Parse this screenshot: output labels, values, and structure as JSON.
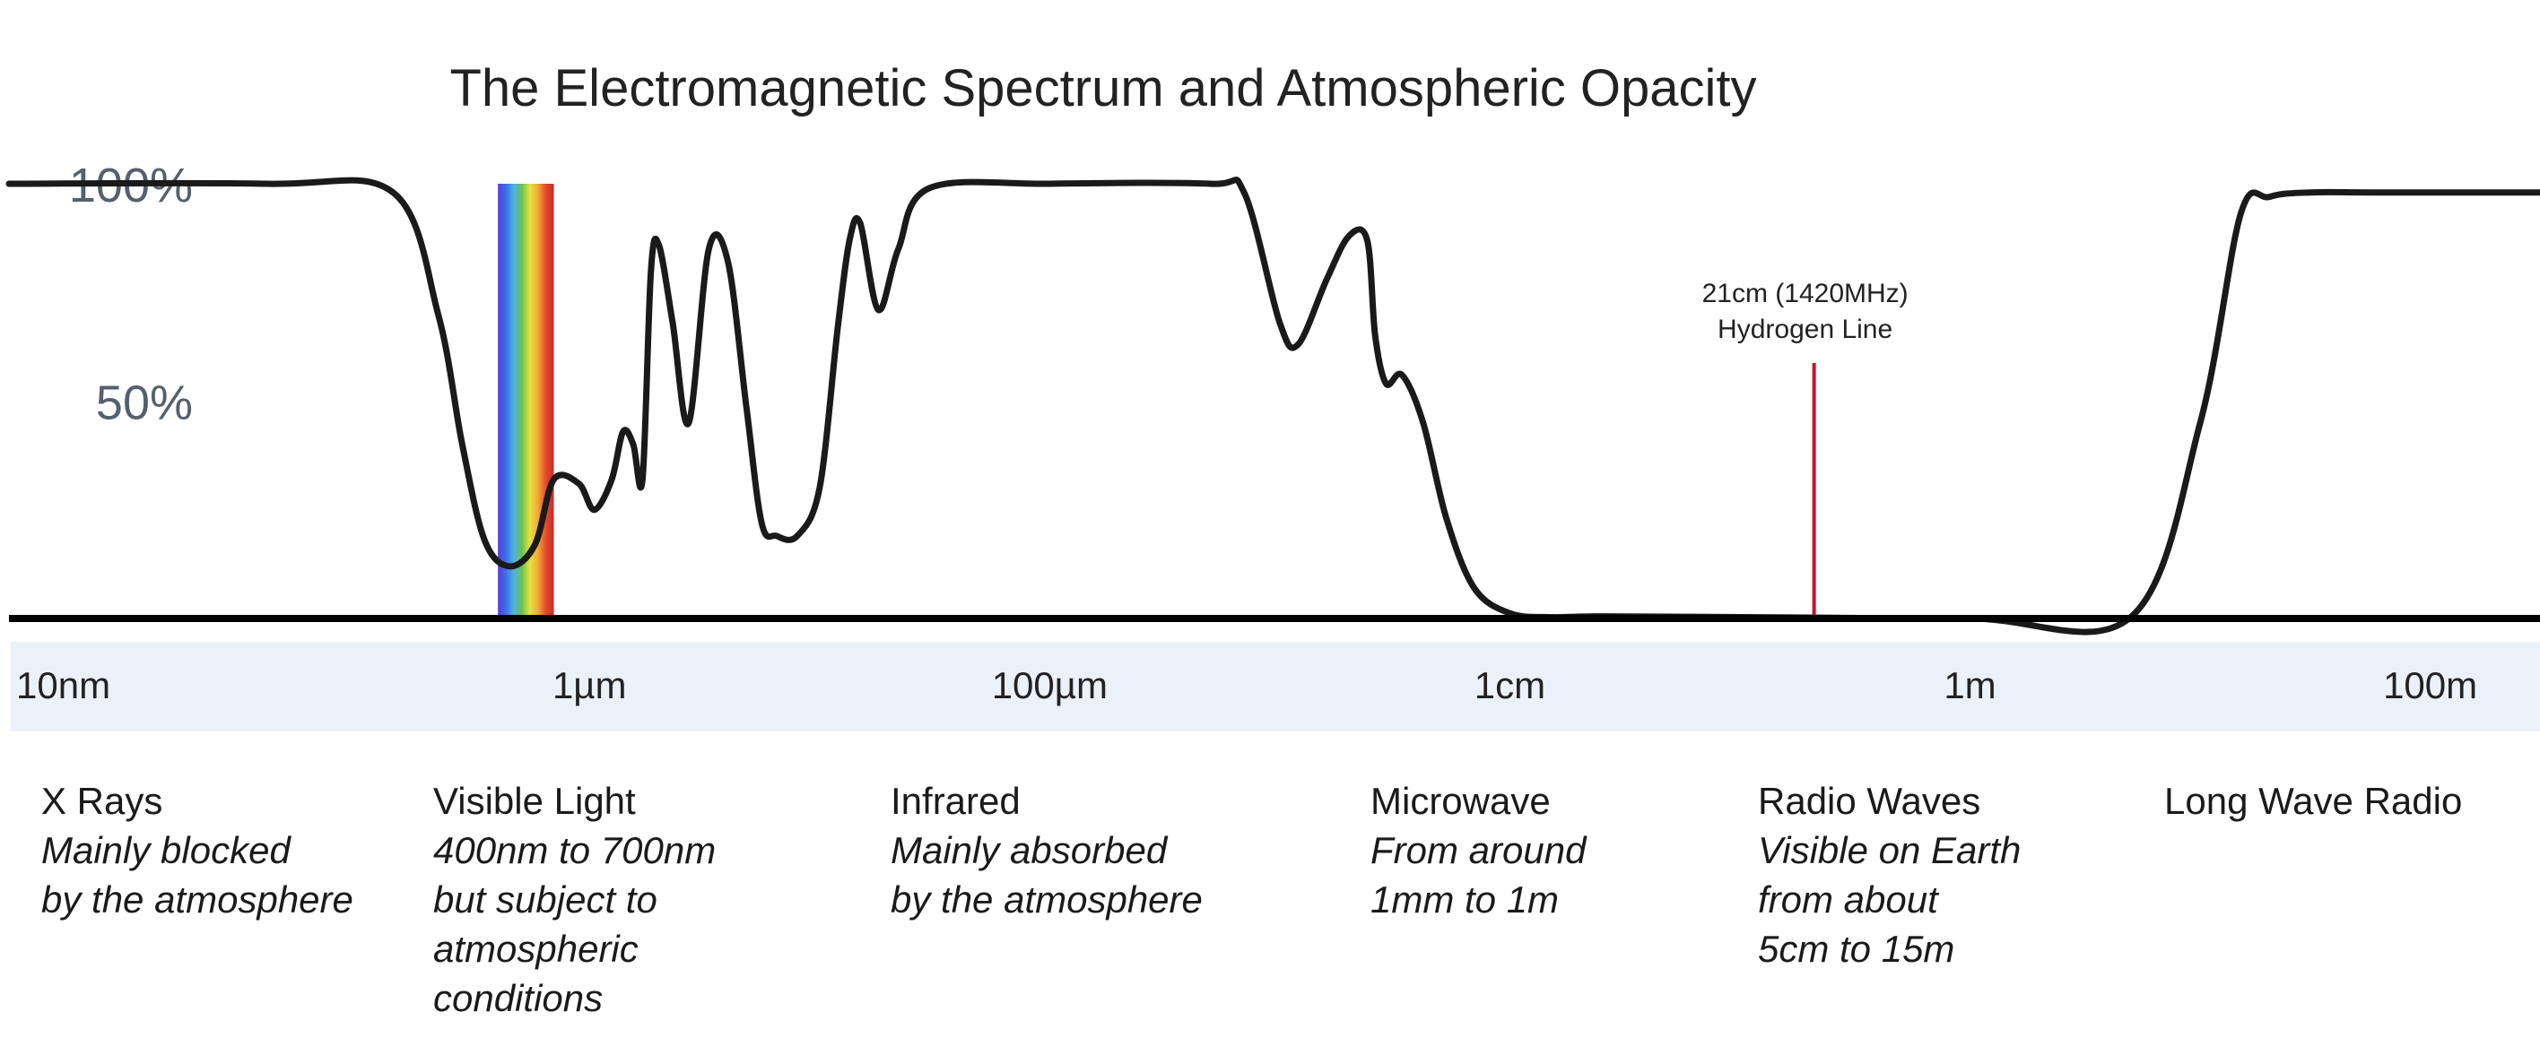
{
  "chart_data": {
    "type": "area",
    "title": "The Electromagnetic Spectrum and Atmospheric Opacity",
    "xlabel": "",
    "ylabel": "",
    "x_scale": "log",
    "y_ticks": [
      "100%",
      "50%"
    ],
    "ylim": [
      0,
      100
    ],
    "xlim_m": [
      3e-09,
      300
    ],
    "x_ticks": [
      {
        "label": "10nm",
        "value_m": 1e-08
      },
      {
        "label": "1µm",
        "value_m": 1e-06
      },
      {
        "label": "100µm",
        "value_m": 0.0001
      },
      {
        "label": "1cm",
        "value_m": 0.01
      },
      {
        "label": "1m",
        "value_m": 1
      },
      {
        "label": "100m",
        "value_m": 100
      }
    ],
    "series": [
      {
        "name": "",
        "color": "#1a1a1a",
        "x_m": [
          3e-09,
          4e-08,
          1.4e-07,
          2.2e-07,
          2.8e-07,
          3.5e-07,
          4.5e-07,
          5.8e-07,
          7e-07,
          9e-07,
          1.05e-06,
          1.25e-06,
          1.4e-06,
          1.55e-06,
          1.7e-06,
          1.85e-06,
          2e-06,
          2.3e-06,
          2.7e-06,
          3.3e-06,
          4e-06,
          4.8e-06,
          5.6e-06,
          6.5e-06,
          8e-06,
          1e-05,
          1.2e-05,
          1.35e-05,
          1.5e-05,
          1.8e-05,
          2.2e-05,
          3e-05,
          0.0001,
          0.0005,
          0.0007,
          0.001,
          0.0012,
          0.0016,
          0.002,
          0.0024,
          0.0026,
          0.0029,
          0.0034,
          0.0042,
          0.0053,
          0.007,
          0.01,
          0.015,
          0.025,
          0.1,
          1,
          5,
          10,
          15,
          20,
          30,
          60,
          300
        ],
        "opacity_pct": [
          100,
          100,
          98,
          70,
          40,
          18,
          12,
          17,
          32,
          31,
          25,
          32,
          43,
          40,
          32,
          80,
          86,
          68,
          45,
          85,
          82,
          49,
          22,
          19,
          19,
          30,
          67,
          87,
          91,
          71,
          85,
          99,
          100,
          100,
          98,
          68,
          63,
          78,
          88,
          87,
          65,
          54,
          56,
          45,
          23,
          7,
          1.2,
          0.3,
          0.5,
          0.3,
          0,
          0.3,
          45,
          93,
          97,
          98,
          98,
          98
        ]
      }
    ],
    "colors": {
      "curve": "#1a1a1a",
      "axis": "#000000",
      "tick_band": "#eaf1f9",
      "hydrogen_line": "#c8102e"
    },
    "annotations": [
      {
        "text": "21cm (1420MHz)",
        "text2": "Hydrogen Line",
        "x_m": 0.21,
        "color": "#c8102e"
      }
    ],
    "visible_band": {
      "from_m": 4e-07,
      "to_m": 7e-07,
      "colors": [
        "#5b3fd8",
        "#3a6ee8",
        "#4fb3e0",
        "#6cc04a",
        "#e8e23c",
        "#f3a83a",
        "#e44a2c",
        "#c92a2a"
      ]
    },
    "categories": [
      {
        "name": "X Rays",
        "desc": "Mainly blocked\nby the atmosphere"
      },
      {
        "name": "Visible Light",
        "desc": "400nm to 700nm\nbut subject to\natmospheric\nconditions"
      },
      {
        "name": "Infrared",
        "desc": "Mainly absorbed\nby the atmosphere"
      },
      {
        "name": "Microwave",
        "desc": "From around\n1mm to 1m"
      },
      {
        "name": "Radio Waves",
        "desc": "Visible on Earth\nfrom about\n5cm to 15m"
      },
      {
        "name": "Long Wave Radio",
        "desc": ""
      }
    ]
  }
}
